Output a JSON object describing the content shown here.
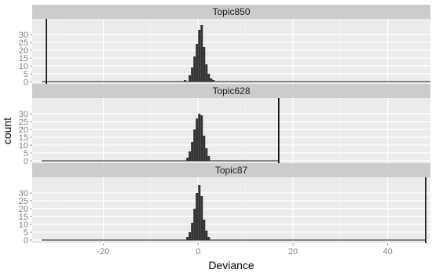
{
  "chart_data": {
    "type": "bar",
    "xlabel": "Deviance",
    "ylabel": "count",
    "xlim": [
      -35,
      49
    ],
    "ylim": [
      0,
      38
    ],
    "x_ticks": [
      -20,
      0,
      20,
      40
    ],
    "y_ticks": [
      0,
      5,
      10,
      15,
      20,
      25,
      30
    ],
    "grid": true,
    "panels": [
      {
        "title": "Topic850",
        "bar_left_edges": [
          -3,
          -2,
          -1.5,
          -1,
          -0.5,
          0,
          0.5,
          1,
          1.5,
          2,
          2.5,
          3
        ],
        "bar_width": 0.5,
        "bar_heights": [
          1,
          4,
          9,
          16,
          24,
          33,
          36,
          22,
          11,
          5,
          2,
          1
        ],
        "baseline_range": [
          -33,
          49
        ],
        "reference_line": -32
      },
      {
        "title": "Topic628",
        "bar_left_edges": [
          -2.5,
          -2,
          -1.5,
          -1,
          -0.5,
          0,
          0.5,
          1,
          1.5,
          2
        ],
        "bar_width": 0.5,
        "bar_heights": [
          2,
          6,
          12,
          20,
          27,
          30,
          29,
          16,
          8,
          3
        ],
        "baseline_range": [
          -33,
          17
        ],
        "reference_line": 17
      },
      {
        "title": "Topic87",
        "bar_left_edges": [
          -2.5,
          -2,
          -1.5,
          -1,
          -0.5,
          0,
          0.5,
          1,
          1.5,
          2
        ],
        "bar_width": 0.5,
        "bar_heights": [
          2,
          5,
          11,
          20,
          30,
          35,
          28,
          13,
          6,
          2
        ],
        "baseline_range": [
          -33,
          48
        ],
        "reference_line": 48
      }
    ]
  }
}
